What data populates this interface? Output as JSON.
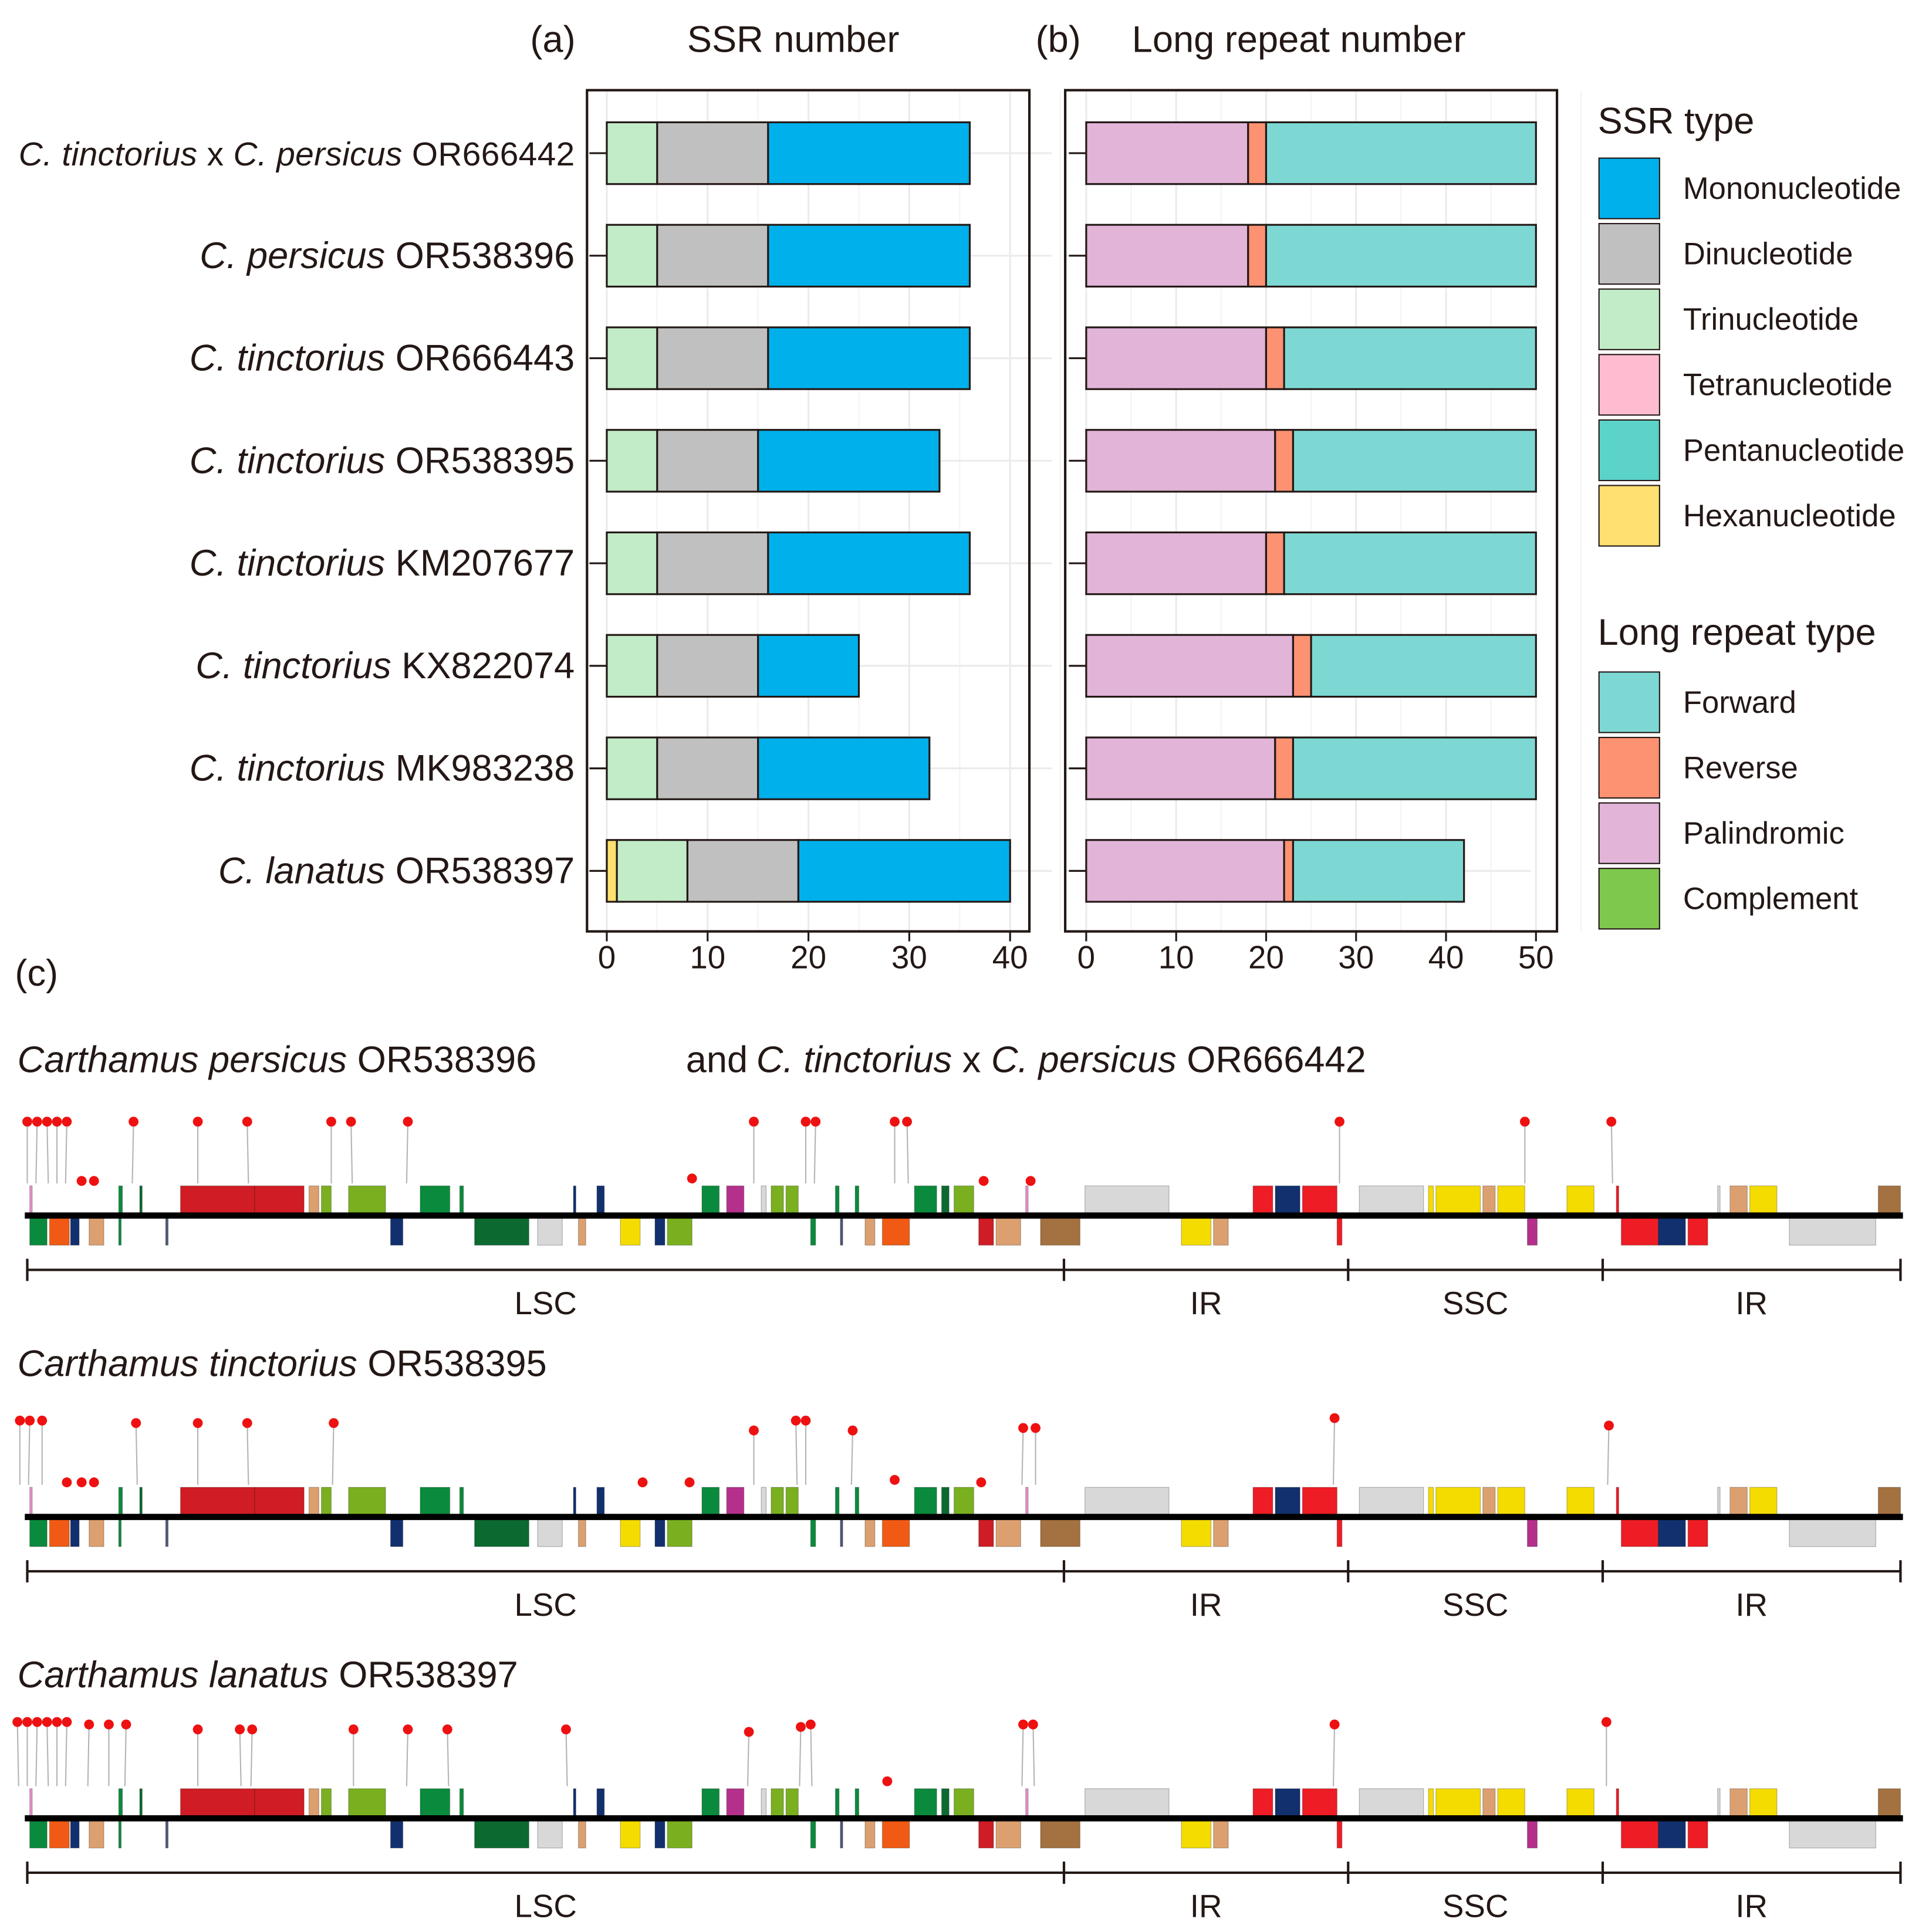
{
  "panels": {
    "a_tag": "(a)",
    "a_title": "SSR number",
    "b_tag": "(b)",
    "b_title": "Long repeat number",
    "c_tag": "(c)"
  },
  "colors": {
    "Mononucleotide": "#00b0eb",
    "Dinucleotide": "#c0c0c0",
    "Trinucleotide": "#c2ecc8",
    "Tetranucleotide": "#ffbcd0",
    "Pentanucleotide": "#5bd3c8",
    "Hexanucleotide": "#ffe070",
    "Forward": "#7dd8d4",
    "Reverse": "#fc9272",
    "Palindromic": "#e2b4d8",
    "Complement": "#7ec84d"
  },
  "legend": {
    "ssr_title": "SSR type",
    "ssr_items": [
      "Mononucleotide",
      "Dinucleotide",
      "Trinucleotide",
      "Tetranucleotide",
      "Pentanucleotide",
      "Hexanucleotide"
    ],
    "long_title": "Long repeat type",
    "long_items": [
      "Forward",
      "Reverse",
      "Palindromic",
      "Complement"
    ]
  },
  "chart_data": [
    {
      "type": "bar",
      "orientation": "horizontal",
      "stacked": true,
      "title": "SSR number",
      "categories": [
        {
          "italic": "C. tinctorius",
          "mid": " x ",
          "italic2": "C. persicus",
          "accession": " OR666442"
        },
        {
          "italic": "C. persicus",
          "accession": " OR538396"
        },
        {
          "italic": "C. tinctorius",
          "accession": " OR666443"
        },
        {
          "italic": "C. tinctorius",
          "accession": " OR538395"
        },
        {
          "italic": "C. tinctorius",
          "accession": " KM207677"
        },
        {
          "italic": "C. tinctorius",
          "accession": " KX822074"
        },
        {
          "italic": "C. tinctorius",
          "accession": " MK983238"
        },
        {
          "italic": "C. lanatus",
          "accession": " OR538397"
        }
      ],
      "series": [
        {
          "name": "Hexanucleotide",
          "values": [
            0,
            0,
            0,
            0,
            0,
            0,
            0,
            1
          ]
        },
        {
          "name": "Trinucleotide",
          "values": [
            5,
            5,
            5,
            5,
            5,
            5,
            5,
            7
          ]
        },
        {
          "name": "Dinucleotide",
          "values": [
            11,
            11,
            11,
            10,
            11,
            10,
            10,
            11
          ]
        },
        {
          "name": "Mononucleotide",
          "values": [
            20,
            20,
            20,
            18,
            20,
            10,
            17,
            21
          ]
        }
      ],
      "xlim": [
        0,
        42
      ],
      "xticks": [
        0,
        10,
        20,
        30,
        40
      ],
      "grid": true
    },
    {
      "type": "bar",
      "orientation": "horizontal",
      "stacked": true,
      "title": "Long repeat number",
      "series": [
        {
          "name": "Palindromic",
          "values": [
            18,
            18,
            20,
            21,
            20,
            23,
            21,
            22
          ]
        },
        {
          "name": "Reverse",
          "values": [
            2,
            2,
            2,
            2,
            2,
            2,
            2,
            1
          ]
        },
        {
          "name": "Forward",
          "values": [
            30,
            30,
            28,
            27,
            28,
            25,
            27,
            19
          ]
        }
      ],
      "xlim": [
        0,
        52
      ],
      "xticks": [
        0,
        10,
        20,
        30,
        40,
        50
      ],
      "grid": true
    }
  ],
  "genome_maps": [
    {
      "title_italic": "Carthamus persicus",
      "title_rest": " OR538396",
      "and": "and",
      "title2_italic": "C. tinctorius",
      "title2_mid": " x ",
      "title2_italic2": "C. persicus",
      "title2_rest": " OR666442",
      "regions": [
        "LSC",
        "IR",
        "SSC",
        "IR"
      ]
    },
    {
      "title_italic": "Carthamus tinctorius",
      "title_rest": " OR538395",
      "regions": [
        "LSC",
        "IR",
        "SSC",
        "IR"
      ]
    },
    {
      "title_italic": "Carthamus lanatus",
      "title_rest": " OR538397",
      "regions": [
        "LSC",
        "IR",
        "SSC",
        "IR"
      ]
    }
  ]
}
